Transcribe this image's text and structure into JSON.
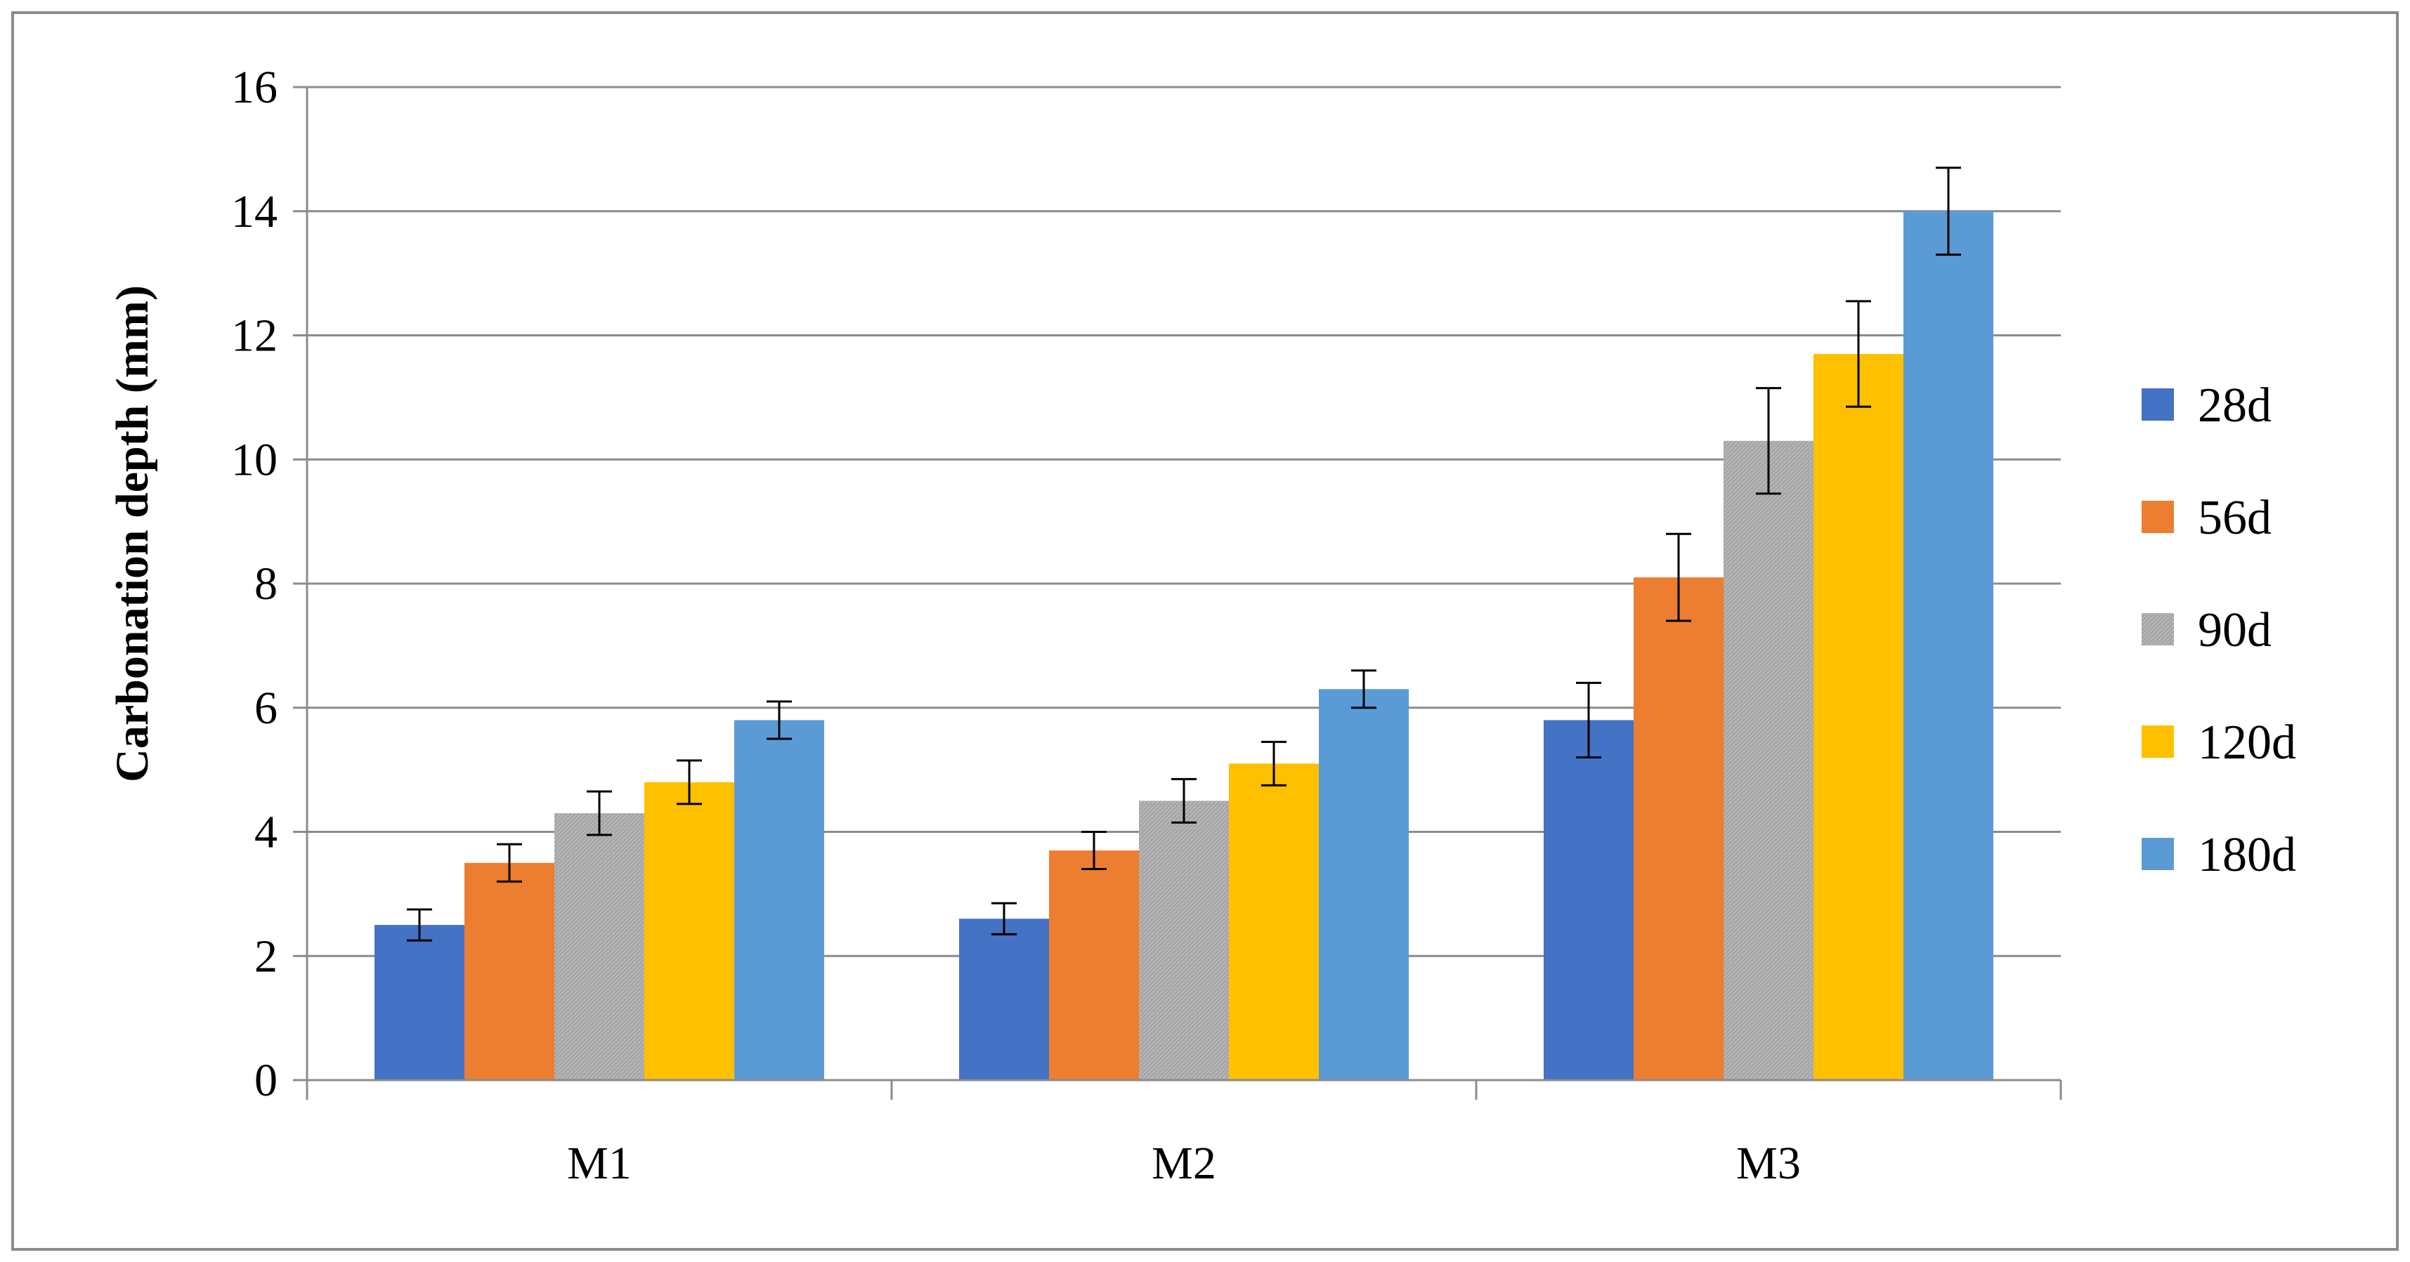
{
  "chart_data": {
    "type": "bar",
    "title": "",
    "xlabel": "",
    "ylabel": "Carbonation depth (mm)",
    "categories": [
      "M1",
      "M2",
      "M3"
    ],
    "series": [
      {
        "name": "28d",
        "values": [
          2.5,
          2.6,
          5.8
        ],
        "errors": [
          0.25,
          0.25,
          0.6
        ],
        "color": "#4472C4"
      },
      {
        "name": "56d",
        "values": [
          3.5,
          3.7,
          8.1
        ],
        "errors": [
          0.3,
          0.3,
          0.7
        ],
        "color": "#ED7D31"
      },
      {
        "name": "90d",
        "values": [
          4.3,
          4.5,
          10.3
        ],
        "errors": [
          0.35,
          0.35,
          0.85
        ],
        "color": "#A5A5A5"
      },
      {
        "name": "120d",
        "values": [
          4.8,
          5.1,
          11.7
        ],
        "errors": [
          0.35,
          0.35,
          0.85
        ],
        "color": "#FFC000"
      },
      {
        "name": "180d",
        "values": [
          5.8,
          6.3,
          14.0
        ],
        "errors": [
          0.3,
          0.3,
          0.7
        ],
        "color": "#5B9BD5"
      }
    ],
    "y_ticks": [
      "0",
      "2",
      "4",
      "6",
      "8",
      "10",
      "12",
      "14",
      "16"
    ],
    "ylim": [
      0,
      16
    ],
    "grid": true,
    "legend_position": "right"
  }
}
